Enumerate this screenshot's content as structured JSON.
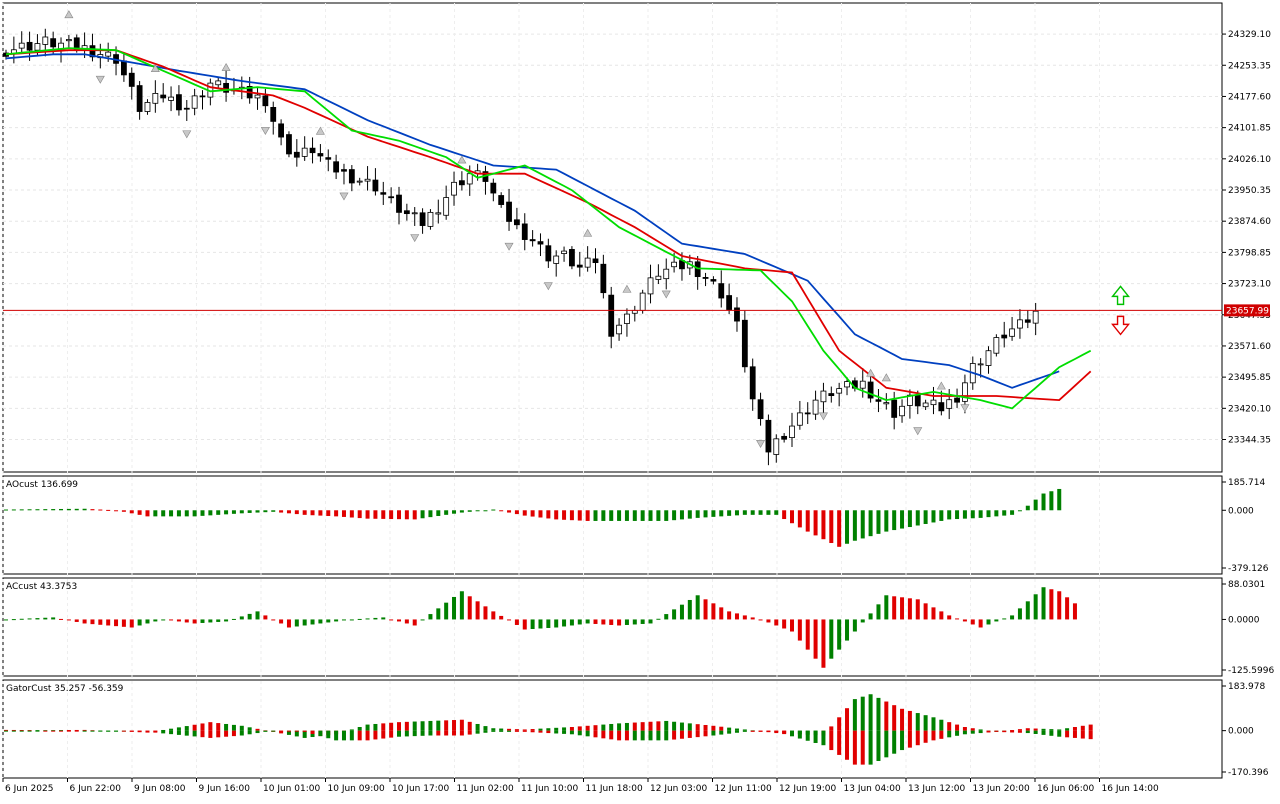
{
  "chart_data": {
    "type": "candlestick",
    "current_price": "23657.99",
    "panels": [
      {
        "id": "main",
        "ylim": [
          23280,
          24390
        ],
        "yticks": [
          "24329.10",
          "24253.35",
          "24177.60",
          "24101.85",
          "24026.10",
          "23950.35",
          "23874.60",
          "23798.85",
          "23723.10",
          "23647.35",
          "23571.60",
          "23495.85",
          "23420.10",
          "23344.35"
        ],
        "ytick_values": [
          24329.1,
          24253.35,
          24177.6,
          24101.85,
          24026.1,
          23950.35,
          23874.6,
          23798.85,
          23723.1,
          23647.35,
          23571.6,
          23495.85,
          23420.1,
          23344.35
        ]
      },
      {
        "id": "ao",
        "label": "AOcust 136.699",
        "ylim": [
          -379.126,
          185.714
        ],
        "yticks": [
          "185.714",
          "0.000",
          "-379.126"
        ]
      },
      {
        "id": "ac",
        "label": "ACcust 43.3753",
        "ylim": [
          -125.5996,
          88.0301
        ],
        "yticks": [
          "88.0301",
          "0.0000",
          "-125.5996"
        ]
      },
      {
        "id": "gator",
        "label": "GatorCust 35.257 -56.359",
        "ylim": [
          -170.396,
          183.978
        ],
        "yticks": [
          "183.978",
          "0.000",
          "-170.396"
        ]
      }
    ],
    "xticks": [
      "6 Jun 2025",
      "6 Jun 22:00",
      "9 Jun 08:00",
      "9 Jun 16:00",
      "10 Jun 01:00",
      "10 Jun 09:00",
      "10 Jun 17:00",
      "11 Jun 02:00",
      "11 Jun 10:00",
      "11 Jun 18:00",
      "12 Jun 03:00",
      "12 Jun 11:00",
      "12 Jun 19:00",
      "13 Jun 04:00",
      "13 Jun 12:00",
      "13 Jun 20:00",
      "16 Jun 06:00",
      "16 Jun 14:00"
    ],
    "anchors_close": [
      [
        0,
        24290
      ],
      [
        5,
        24310
      ],
      [
        10,
        24295
      ],
      [
        14,
        24270
      ],
      [
        17,
        24150
      ],
      [
        20,
        24180
      ],
      [
        23,
        24150
      ],
      [
        26,
        24210
      ],
      [
        29,
        24190
      ],
      [
        33,
        24170
      ],
      [
        35,
        24070
      ],
      [
        37,
        24030
      ],
      [
        39,
        24050
      ],
      [
        41,
        24010
      ],
      [
        43,
        23990
      ],
      [
        45,
        23975
      ],
      [
        47,
        23960
      ],
      [
        49,
        23920
      ],
      [
        51,
        23890
      ],
      [
        53,
        23870
      ],
      [
        55,
        23910
      ],
      [
        57,
        23960
      ],
      [
        59,
        23990
      ],
      [
        61,
        23980
      ],
      [
        63,
        23900
      ],
      [
        65,
        23860
      ],
      [
        67,
        23830
      ],
      [
        69,
        23790
      ],
      [
        71,
        23790
      ],
      [
        73,
        23760
      ],
      [
        75,
        23780
      ],
      [
        77,
        23610
      ],
      [
        79,
        23640
      ],
      [
        81,
        23700
      ],
      [
        83,
        23750
      ],
      [
        85,
        23760
      ],
      [
        87,
        23770
      ],
      [
        89,
        23740
      ],
      [
        91,
        23700
      ],
      [
        93,
        23620
      ],
      [
        95,
        23440
      ],
      [
        97,
        23320
      ],
      [
        99,
        23360
      ],
      [
        101,
        23400
      ],
      [
        103,
        23440
      ],
      [
        105,
        23460
      ],
      [
        107,
        23470
      ],
      [
        109,
        23480
      ],
      [
        111,
        23440
      ],
      [
        113,
        23410
      ],
      [
        115,
        23440
      ],
      [
        117,
        23430
      ],
      [
        119,
        23420
      ],
      [
        121,
        23450
      ],
      [
        123,
        23520
      ],
      [
        125,
        23560
      ],
      [
        127,
        23600
      ],
      [
        129,
        23620
      ],
      [
        131,
        23650
      ]
    ],
    "series": [
      {
        "name": "",
        "color": "#0040c0",
        "anchors": [
          [
            0,
            24270
          ],
          [
            6,
            24280
          ],
          [
            10,
            24280
          ],
          [
            16,
            24260
          ],
          [
            22,
            24240
          ],
          [
            30,
            24215
          ],
          [
            38,
            24195
          ],
          [
            46,
            24120
          ],
          [
            54,
            24060
          ],
          [
            62,
            24010
          ],
          [
            70,
            24000
          ],
          [
            80,
            23900
          ],
          [
            86,
            23820
          ],
          [
            94,
            23795
          ],
          [
            102,
            23730
          ],
          [
            108,
            23600
          ],
          [
            114,
            23540
          ],
          [
            120,
            23525
          ],
          [
            124,
            23500
          ],
          [
            128,
            23470
          ],
          [
            134,
            23510
          ]
        ]
      },
      {
        "name": "",
        "color": "#e00000",
        "anchors": [
          [
            0,
            24280
          ],
          [
            8,
            24290
          ],
          [
            14,
            24290
          ],
          [
            20,
            24250
          ],
          [
            26,
            24200
          ],
          [
            34,
            24180
          ],
          [
            38,
            24150
          ],
          [
            46,
            24080
          ],
          [
            54,
            24030
          ],
          [
            60,
            23990
          ],
          [
            66,
            23990
          ],
          [
            74,
            23920
          ],
          [
            80,
            23860
          ],
          [
            86,
            23790
          ],
          [
            94,
            23760
          ],
          [
            100,
            23750
          ],
          [
            106,
            23560
          ],
          [
            112,
            23470
          ],
          [
            118,
            23450
          ],
          [
            126,
            23450
          ],
          [
            134,
            23440
          ],
          [
            138,
            23510
          ]
        ]
      },
      {
        "name": "",
        "color": "#00dd00",
        "anchors": [
          [
            0,
            24280
          ],
          [
            8,
            24295
          ],
          [
            14,
            24290
          ],
          [
            20,
            24240
          ],
          [
            26,
            24190
          ],
          [
            32,
            24200
          ],
          [
            38,
            24190
          ],
          [
            44,
            24095
          ],
          [
            50,
            24070
          ],
          [
            56,
            24030
          ],
          [
            60,
            23980
          ],
          [
            66,
            24010
          ],
          [
            72,
            23950
          ],
          [
            78,
            23860
          ],
          [
            84,
            23800
          ],
          [
            88,
            23760
          ],
          [
            96,
            23755
          ],
          [
            100,
            23680
          ],
          [
            104,
            23560
          ],
          [
            108,
            23470
          ],
          [
            112,
            23440
          ],
          [
            118,
            23460
          ],
          [
            124,
            23440
          ],
          [
            128,
            23420
          ],
          [
            134,
            23520
          ],
          [
            138,
            23560
          ]
        ]
      },
      {
        "name": "",
        "color": "#008000",
        "anchors": [
          [
            0,
            5
          ],
          [
            10,
            10
          ],
          [
            14,
            0
          ],
          [
            18,
            -40
          ],
          [
            24,
            -40
          ],
          [
            30,
            -20
          ],
          [
            34,
            -10
          ],
          [
            38,
            -30
          ],
          [
            42,
            -40
          ],
          [
            46,
            -55
          ],
          [
            52,
            -60
          ],
          [
            58,
            -15
          ],
          [
            62,
            5
          ],
          [
            66,
            -35
          ],
          [
            70,
            -60
          ],
          [
            74,
            -70
          ],
          [
            78,
            -70
          ],
          [
            84,
            -70
          ],
          [
            88,
            -50
          ],
          [
            94,
            -30
          ],
          [
            98,
            -30
          ],
          [
            102,
            -140
          ],
          [
            106,
            -240
          ],
          [
            108,
            -200
          ],
          [
            112,
            -140
          ],
          [
            116,
            -100
          ],
          [
            120,
            -60
          ],
          [
            124,
            -50
          ],
          [
            128,
            -30
          ],
          [
            130,
            30
          ],
          [
            132,
            110
          ],
          [
            134,
            140
          ]
        ]
      },
      {
        "name": "",
        "color": "#008000",
        "anchors": [
          [
            0,
            0
          ],
          [
            6,
            5
          ],
          [
            10,
            -10
          ],
          [
            16,
            -20
          ],
          [
            20,
            0
          ],
          [
            24,
            -10
          ],
          [
            28,
            -5
          ],
          [
            32,
            20
          ],
          [
            36,
            -20
          ],
          [
            40,
            -10
          ],
          [
            44,
            0
          ],
          [
            48,
            5
          ],
          [
            52,
            -15
          ],
          [
            58,
            70
          ],
          [
            62,
            20
          ],
          [
            66,
            -25
          ],
          [
            70,
            -20
          ],
          [
            74,
            -10
          ],
          [
            78,
            -15
          ],
          [
            82,
            -10
          ],
          [
            88,
            60
          ],
          [
            92,
            20
          ],
          [
            96,
            0
          ],
          [
            100,
            -30
          ],
          [
            104,
            -120
          ],
          [
            108,
            -30
          ],
          [
            112,
            60
          ],
          [
            116,
            50
          ],
          [
            120,
            10
          ],
          [
            124,
            -20
          ],
          [
            128,
            10
          ],
          [
            132,
            80
          ],
          [
            134,
            70
          ],
          [
            136,
            40
          ]
        ]
      },
      {
        "name": "",
        "color": "#008000",
        "anchors": [
          [
            0,
            3
          ],
          [
            5,
            2
          ],
          [
            10,
            3
          ],
          [
            14,
            -2
          ],
          [
            18,
            -8
          ],
          [
            26,
            35
          ],
          [
            30,
            20
          ],
          [
            34,
            -5
          ],
          [
            38,
            -30
          ],
          [
            42,
            -15
          ],
          [
            46,
            25
          ],
          [
            50,
            35
          ],
          [
            54,
            40
          ],
          [
            58,
            45
          ],
          [
            62,
            10
          ],
          [
            66,
            5
          ],
          [
            72,
            15
          ],
          [
            78,
            30
          ],
          [
            84,
            40
          ],
          [
            90,
            20
          ],
          [
            94,
            5
          ],
          [
            98,
            -10
          ],
          [
            104,
            -20
          ],
          [
            108,
            130
          ],
          [
            110,
            150
          ],
          [
            114,
            90
          ],
          [
            118,
            55
          ],
          [
            122,
            15
          ],
          [
            126,
            -5
          ],
          [
            130,
            10
          ],
          [
            134,
            5
          ],
          [
            138,
            25
          ]
        ]
      },
      {
        "name": "",
        "color": "#e00000",
        "anchors": [
          [
            0,
            -3
          ],
          [
            5,
            -2
          ],
          [
            10,
            -3
          ],
          [
            14,
            0
          ],
          [
            18,
            -5
          ],
          [
            26,
            -30
          ],
          [
            30,
            -20
          ],
          [
            34,
            0
          ],
          [
            38,
            -5
          ],
          [
            42,
            -40
          ],
          [
            46,
            -40
          ],
          [
            50,
            -25
          ],
          [
            54,
            -20
          ],
          [
            58,
            -20
          ],
          [
            62,
            -5
          ],
          [
            66,
            -5
          ],
          [
            72,
            -15
          ],
          [
            78,
            -40
          ],
          [
            84,
            -40
          ],
          [
            90,
            -20
          ],
          [
            94,
            -5
          ],
          [
            98,
            -5
          ],
          [
            104,
            -60
          ],
          [
            108,
            -140
          ],
          [
            110,
            -140
          ],
          [
            114,
            -80
          ],
          [
            118,
            -40
          ],
          [
            122,
            -15
          ],
          [
            126,
            -5
          ],
          [
            130,
            -10
          ],
          [
            134,
            -25
          ],
          [
            138,
            -35
          ]
        ]
      }
    ]
  },
  "markers": {
    "up_arrow_color": "#00c000",
    "down_arrow_color": "#e00000"
  }
}
